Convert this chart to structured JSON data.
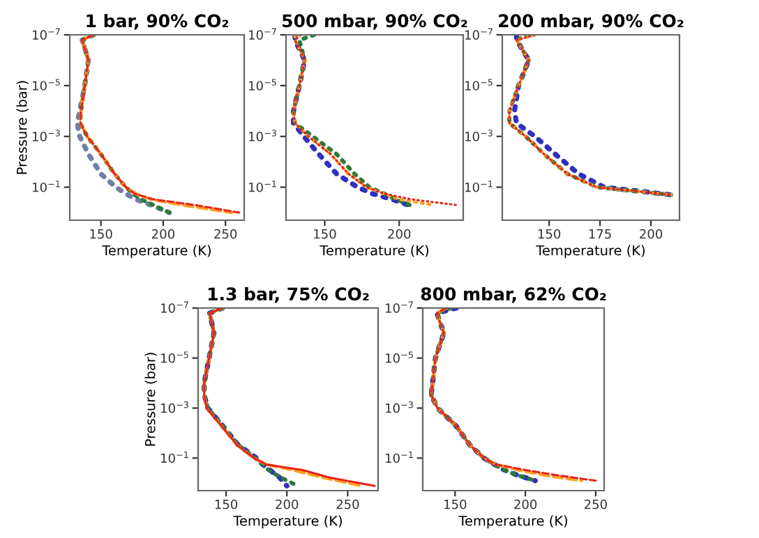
{
  "chart_data": [
    {
      "type": "line",
      "title": "1 bar, 90% CO₂",
      "xlabel": "Temperature (K)",
      "ylabel": "Pressure (bar)",
      "log": "y",
      "xlim": [
        125,
        265
      ],
      "xticks": [
        150,
        200,
        250
      ],
      "ylim": [
        2,
        1e-07
      ],
      "yticks": [
        {
          "value": 1e-07,
          "label": "10$^{−7}$"
        },
        {
          "value": 1e-05,
          "label": "10$^{−5}$"
        },
        {
          "value": 0.001,
          "label": "10$^{−3}$"
        },
        {
          "value": 0.1,
          "label": "10$^{−1}$"
        }
      ],
      "series": [
        {
          "color": "#7080a8",
          "line_style": "dotted",
          "values": [
            1e-07,
            1.6e-07,
            1e-06,
            1e-05,
            0.0001,
            0.0003,
            0.001,
            0.005,
            0.03,
            0.1,
            0.18,
            0.3,
            0.5,
            1
          ],
          "x": [
            144,
            135,
            140,
            137,
            133,
            131,
            133,
            140,
            150,
            162,
            170,
            178,
            190,
            205
          ]
        },
        {
          "color": "#2a7a3a",
          "line_style": "dotted",
          "values": [
            1e-07,
            1.6e-07,
            1e-06,
            1e-05,
            0.0001,
            0.0003,
            0.001,
            0.005,
            0.03,
            0.1,
            0.18,
            0.3,
            0.5,
            1
          ],
          "x": [
            144,
            135,
            140,
            137,
            134,
            133.5,
            139,
            150,
            161,
            170,
            176,
            182,
            192,
            205
          ]
        },
        {
          "color": "#ffa020",
          "line_style": "dashed",
          "values": [
            1e-07,
            1.6e-07,
            1e-06,
            1e-05,
            0.0001,
            0.0003,
            0.001,
            0.005,
            0.03,
            0.1,
            0.18,
            0.3,
            0.5,
            1
          ],
          "x": [
            144,
            135,
            140,
            137,
            134,
            133.5,
            139,
            150,
            161,
            170,
            178,
            190,
            215,
            255
          ]
        },
        {
          "color": "#e8231b",
          "line_style": "dashed",
          "values": [
            1e-07,
            1.6e-07,
            1e-06,
            1e-05,
            0.0001,
            0.0003,
            0.001,
            0.005,
            0.03,
            0.1,
            0.18,
            0.3,
            0.5,
            1
          ],
          "x": [
            144,
            135,
            140,
            137,
            134,
            133.5,
            139,
            150,
            161,
            170,
            177,
            192,
            225,
            261
          ]
        }
      ]
    },
    {
      "type": "line",
      "title": "500 mbar, 90% CO₂",
      "xlabel": "Temperature (K)",
      "log": "y",
      "xlim": [
        124,
        243
      ],
      "xticks": [
        150,
        200
      ],
      "ylim": [
        2,
        1e-07
      ],
      "yticks": [
        {
          "value": 1e-07,
          "label": "10$^{−7}$"
        },
        {
          "value": 1e-05,
          "label": "10$^{−5}$"
        },
        {
          "value": 0.001,
          "label": "10$^{−3}$"
        },
        {
          "value": 0.1,
          "label": "10$^{−1}$"
        }
      ],
      "series": [
        {
          "color": "#3030c0",
          "line_style": "dotted",
          "values": [
            1e-07,
            1.6e-07,
            1e-06,
            1e-05,
            0.0001,
            0.0003,
            0.001,
            0.005,
            0.03,
            0.1,
            0.18,
            0.3,
            0.5
          ],
          "x": [
            130,
            130,
            136.5,
            133,
            129,
            129,
            136,
            146,
            158,
            172,
            182,
            195,
            206
          ]
        },
        {
          "color": "#2a7a3a",
          "line_style": "dotted",
          "values": [
            1e-07,
            1.6e-07,
            1e-06,
            1e-05,
            0.0001,
            0.0003,
            0.001,
            0.005,
            0.03,
            0.1,
            0.18,
            0.3,
            0.5
          ],
          "x": [
            143,
            133,
            136.5,
            133,
            129,
            130,
            142,
            158,
            170,
            180,
            190,
            198,
            207
          ]
        },
        {
          "color": "#ffa020",
          "line_style": "dotted",
          "values": [
            1e-07,
            1.6e-07,
            1e-06,
            1e-05,
            0.0001,
            0.0003,
            0.001,
            0.005,
            0.03,
            0.1,
            0.18,
            0.3,
            0.5
          ],
          "x": [
            130,
            130,
            136.5,
            133,
            129,
            130,
            139,
            154,
            166,
            178,
            190,
            200,
            222
          ]
        },
        {
          "color": "#e8231b",
          "line_style": "dotted",
          "values": [
            1e-07,
            1.6e-07,
            1e-06,
            1e-05,
            0.0001,
            0.0003,
            0.001,
            0.005,
            0.03,
            0.1,
            0.18,
            0.3,
            0.5
          ],
          "x": [
            134,
            130,
            136.5,
            133,
            129,
            130,
            139,
            154,
            166,
            178,
            190,
            208,
            238
          ]
        }
      ]
    },
    {
      "type": "line",
      "title": "200 mbar, 90% CO₂",
      "xlabel": "Temperature (K)",
      "log": "y",
      "xlim": [
        127,
        214
      ],
      "xticks": [
        150,
        175,
        200
      ],
      "ylim": [
        2,
        1e-07
      ],
      "yticks": [
        {
          "value": 1e-07,
          "label": "10$^{−7}$"
        },
        {
          "value": 1e-05,
          "label": "10$^{−5}$"
        },
        {
          "value": 0.001,
          "label": "10$^{−3}$"
        },
        {
          "value": 0.1,
          "label": "10$^{−1}$"
        }
      ],
      "series": [
        {
          "color": "#3030c0",
          "line_style": "dotted",
          "values": [
            1e-07,
            1.6e-07,
            1e-06,
            1e-05,
            0.0001,
            0.0003,
            0.001,
            0.005,
            0.03,
            0.1,
            0.2
          ],
          "x": [
            134,
            134,
            140,
            135,
            133,
            134,
            143,
            153,
            164.5,
            177,
            210
          ]
        },
        {
          "color": "#2a7a3a",
          "line_style": "dotted",
          "values": [
            1e-07,
            1.6e-07,
            1e-06,
            1e-05,
            0.0001,
            0.0003,
            0.001,
            0.005,
            0.03,
            0.1,
            0.2
          ],
          "x": [
            140,
            134,
            140,
            135,
            130.5,
            130.5,
            138.5,
            147.5,
            159,
            173.5,
            210
          ]
        },
        {
          "color": "#ffa020",
          "line_style": "dotted",
          "values": [
            1e-07,
            1.6e-07,
            1e-06,
            1e-05,
            0.0001,
            0.0003,
            0.001,
            0.005,
            0.03,
            0.1,
            0.2
          ],
          "x": [
            143,
            134,
            140,
            135,
            130.5,
            130.5,
            138.5,
            147.5,
            159,
            173.5,
            210
          ]
        },
        {
          "color": "#e8231b",
          "line_style": "dotted",
          "values": [
            1e-07,
            1.6e-07,
            1e-06,
            1e-05,
            0.0001,
            0.0003,
            0.001,
            0.005,
            0.03,
            0.1,
            0.2
          ],
          "x": [
            143,
            134,
            140,
            135,
            130.5,
            130.5,
            138.5,
            147.5,
            159,
            173.5,
            210
          ]
        }
      ]
    },
    {
      "type": "line",
      "title": "1.3 bar, 75% CO₂",
      "xlabel": "Temperature (K)",
      "ylabel": "Pressure (bar)",
      "log": "y",
      "xlim": [
        127,
        275
      ],
      "xticks": [
        150,
        200,
        250
      ],
      "ylim": [
        2,
        1e-07
      ],
      "yticks": [
        {
          "value": 1e-07,
          "label": "10$^{−7}$"
        },
        {
          "value": 1e-05,
          "label": "10$^{−5}$"
        },
        {
          "value": 0.001,
          "label": "10$^{−3}$"
        },
        {
          "value": 0.1,
          "label": "10$^{−1}$"
        }
      ],
      "series": [
        {
          "color": "#3030c0",
          "line_style": "dotted",
          "values": [
            1e-07,
            1.6e-07,
            1e-06,
            1e-05,
            0.0001,
            0.0003,
            0.001,
            0.005,
            0.03,
            0.1,
            0.18,
            0.3,
            0.6,
            1.3
          ],
          "x": [
            147,
            136.5,
            140,
            136,
            132,
            132,
            135,
            147,
            160,
            175,
            180,
            186,
            194,
            200
          ]
        },
        {
          "color": "#2a7a3a",
          "line_style": "dotted",
          "values": [
            1e-07,
            1.6e-07,
            1e-06,
            1e-05,
            0.0001,
            0.0003,
            0.001,
            0.005,
            0.03,
            0.1,
            0.18,
            0.3,
            0.6,
            1.3
          ],
          "x": [
            147,
            136.5,
            140,
            136,
            132,
            132,
            135,
            147,
            160,
            174,
            180,
            185,
            195,
            209
          ]
        },
        {
          "color": "#ffa020",
          "line_style": "dashed",
          "values": [
            1e-07,
            1.6e-07,
            1e-06,
            1e-05,
            0.0001,
            0.0003,
            0.001,
            0.005,
            0.03,
            0.1,
            0.18,
            0.3,
            0.6,
            1.3
          ],
          "x": [
            147,
            136.5,
            140,
            136,
            132,
            132,
            134,
            146,
            159,
            173,
            183,
            205,
            230,
            262
          ]
        },
        {
          "color": "#e8231b",
          "line_style": "solid",
          "values": [
            1e-07,
            1.6e-07,
            1e-06,
            1e-05,
            0.0001,
            0.0003,
            0.001,
            0.005,
            0.03,
            0.1,
            0.18,
            0.3,
            0.6,
            1.3
          ],
          "x": [
            147,
            136.5,
            140,
            136,
            132,
            132,
            134,
            146,
            159,
            173,
            183,
            213,
            235,
            272
          ]
        }
      ]
    },
    {
      "type": "line",
      "title": "800 mbar, 62% CO₂",
      "xlabel": "Temperature (K)",
      "log": "y",
      "xlim": [
        127,
        256
      ],
      "xticks": [
        150,
        200,
        250
      ],
      "ylim": [
        2,
        1e-07
      ],
      "yticks": [
        {
          "value": 1e-07,
          "label": "10$^{−7}$"
        },
        {
          "value": 1e-05,
          "label": "10$^{−5}$"
        },
        {
          "value": 0.001,
          "label": "10$^{−3}$"
        },
        {
          "value": 0.1,
          "label": "10$^{−1}$"
        }
      ],
      "series": [
        {
          "color": "#3030c0",
          "line_style": "dotted",
          "values": [
            1e-07,
            1.6e-07,
            1e-06,
            1e-05,
            0.0001,
            0.0003,
            0.001,
            0.005,
            0.03,
            0.1,
            0.18,
            0.3,
            0.5,
            0.8
          ],
          "x": [
            151,
            137,
            142,
            136,
            134,
            133,
            137.5,
            150.5,
            160.5,
            170.5,
            178,
            185,
            195,
            207
          ]
        },
        {
          "color": "#2a7a3a",
          "line_style": "dotted",
          "values": [
            1e-07,
            1.6e-07,
            1e-06,
            1e-05,
            0.0001,
            0.0003,
            0.001,
            0.005,
            0.03,
            0.1,
            0.18,
            0.3,
            0.5,
            0.8
          ],
          "x": [
            147,
            137,
            142,
            136,
            134,
            133,
            137.5,
            150.5,
            160.5,
            170.5,
            178,
            185,
            195,
            207
          ]
        },
        {
          "color": "#ffa020",
          "line_style": "dashed",
          "values": [
            1e-07,
            1.6e-07,
            1e-06,
            1e-05,
            0.0001,
            0.0003,
            0.001,
            0.005,
            0.03,
            0.1,
            0.18,
            0.3,
            0.5,
            0.8
          ],
          "x": [
            144,
            137,
            142,
            136,
            134,
            133,
            137.5,
            150.5,
            160.5,
            170.5,
            179,
            195,
            215,
            240
          ]
        },
        {
          "color": "#e8231b",
          "line_style": "dashed",
          "values": [
            1e-07,
            1.6e-07,
            1e-06,
            1e-05,
            0.0001,
            0.0003,
            0.001,
            0.005,
            0.03,
            0.1,
            0.18,
            0.3,
            0.5,
            0.8
          ],
          "x": [
            144,
            137,
            142,
            136,
            134,
            133,
            137.5,
            150.5,
            160.5,
            170.5,
            179,
            200,
            224,
            250
          ]
        }
      ]
    }
  ]
}
